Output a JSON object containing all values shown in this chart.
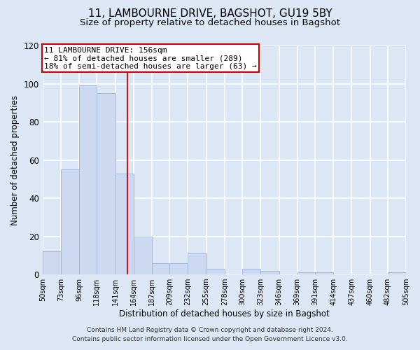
{
  "title_line1": "11, LAMBOURNE DRIVE, BAGSHOT, GU19 5BY",
  "title_line2": "Size of property relative to detached houses in Bagshot",
  "xlabel": "Distribution of detached houses by size in Bagshot",
  "ylabel": "Number of detached properties",
  "bar_color": "#ccd9f0",
  "bar_edge_color": "#99b3d9",
  "bins": [
    50,
    73,
    96,
    118,
    141,
    164,
    187,
    209,
    232,
    255,
    278,
    300,
    323,
    346,
    369,
    391,
    414,
    437,
    460,
    482,
    505
  ],
  "counts": [
    12,
    55,
    99,
    95,
    53,
    20,
    6,
    6,
    11,
    3,
    0,
    3,
    2,
    0,
    1,
    1,
    0,
    0,
    0,
    1
  ],
  "tick_labels": [
    "50sqm",
    "73sqm",
    "96sqm",
    "118sqm",
    "141sqm",
    "164sqm",
    "187sqm",
    "209sqm",
    "232sqm",
    "255sqm",
    "278sqm",
    "300sqm",
    "323sqm",
    "346sqm",
    "369sqm",
    "391sqm",
    "414sqm",
    "437sqm",
    "460sqm",
    "482sqm",
    "505sqm"
  ],
  "annotation_line1": "11 LAMBOURNE DRIVE: 156sqm",
  "annotation_line2": "← 81% of detached houses are smaller (289)",
  "annotation_line3": "18% of semi-detached houses are larger (63) →",
  "red_line_x": 156,
  "ylim": [
    0,
    120
  ],
  "yticks": [
    0,
    20,
    40,
    60,
    80,
    100,
    120
  ],
  "footer_line1": "Contains HM Land Registry data © Crown copyright and database right 2024.",
  "footer_line2": "Contains public sector information licensed under the Open Government Licence v3.0.",
  "figure_background": "#dce6f5",
  "plot_background": "#dce6f5",
  "grid_color": "#ffffff",
  "annotation_box_color": "#ffffff",
  "annotation_box_edge": "#cc0000",
  "red_line_color": "#cc0000",
  "title_fontsize": 11,
  "subtitle_fontsize": 9.5,
  "axis_label_fontsize": 8.5,
  "tick_fontsize": 7,
  "annotation_fontsize": 8,
  "footer_fontsize": 6.5
}
